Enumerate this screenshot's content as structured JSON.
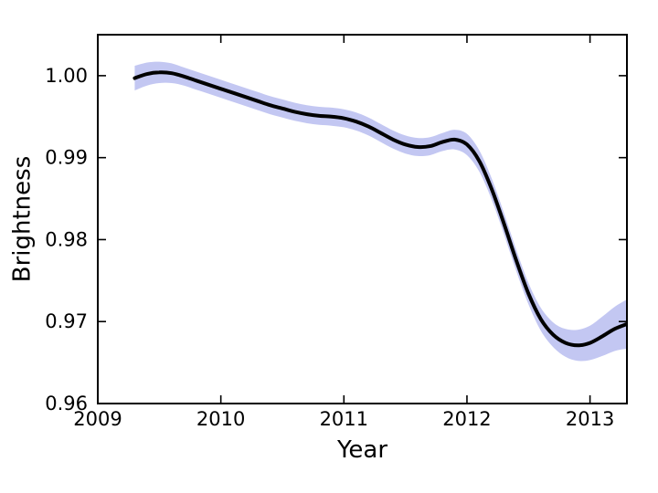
{
  "figure": {
    "background": "#ffffff",
    "frame_color": "#000000"
  },
  "chart_data": {
    "type": "line",
    "title": "",
    "xlabel": "Year",
    "ylabel": "Brightness",
    "xlim": [
      2009,
      2013.3
    ],
    "ylim": [
      0.96,
      1.005
    ],
    "xticks": [
      2009,
      2010,
      2011,
      2012,
      2013
    ],
    "xtick_labels": [
      "2009",
      "2010",
      "2011",
      "2012",
      "2013"
    ],
    "yticks": [
      0.96,
      0.97,
      0.98,
      0.99,
      1.0
    ],
    "ytick_labels": [
      "0.96",
      "0.97",
      "0.98",
      "0.99",
      "1.00"
    ],
    "grid": false,
    "legend": "none",
    "styles": {
      "line_color": "#000000",
      "line_width": 4,
      "band_color": "#c3c7f2",
      "tick_direction": "in"
    },
    "series": [
      {
        "name": "smoothed brightness with uncertainty band",
        "x": [
          2009.3,
          2009.4,
          2009.5,
          2009.6,
          2009.7,
          2009.8,
          2009.9,
          2010.0,
          2010.1,
          2010.2,
          2010.3,
          2010.4,
          2010.5,
          2010.6,
          2010.7,
          2010.8,
          2010.9,
          2011.0,
          2011.1,
          2011.2,
          2011.3,
          2011.4,
          2011.5,
          2011.6,
          2011.7,
          2011.8,
          2011.9,
          2012.0,
          2012.1,
          2012.2,
          2012.3,
          2012.4,
          2012.5,
          2012.6,
          2012.7,
          2012.8,
          2012.9,
          2013.0,
          2013.1,
          2013.2,
          2013.3
        ],
        "y": [
          0.9997,
          1.0002,
          1.0004,
          1.0003,
          0.9999,
          0.9994,
          0.9989,
          0.9984,
          0.9979,
          0.9974,
          0.9969,
          0.9964,
          0.996,
          0.9956,
          0.9953,
          0.9951,
          0.995,
          0.9948,
          0.9944,
          0.9938,
          0.993,
          0.9922,
          0.9916,
          0.9913,
          0.9914,
          0.9919,
          0.9922,
          0.9916,
          0.9896,
          0.9862,
          0.982,
          0.9775,
          0.9734,
          0.9703,
          0.9684,
          0.9674,
          0.9671,
          0.9674,
          0.9682,
          0.9691,
          0.9697
        ],
        "band_halfwidth": [
          0.0015,
          0.0014,
          0.0013,
          0.0012,
          0.0011,
          0.0011,
          0.0011,
          0.0011,
          0.0011,
          0.0011,
          0.0011,
          0.0011,
          0.0011,
          0.0011,
          0.0011,
          0.0011,
          0.0011,
          0.0011,
          0.0011,
          0.0011,
          0.0011,
          0.0011,
          0.0011,
          0.0011,
          0.0011,
          0.0011,
          0.0012,
          0.0013,
          0.0013,
          0.0013,
          0.0013,
          0.0013,
          0.0013,
          0.0014,
          0.0015,
          0.0017,
          0.0019,
          0.0021,
          0.0024,
          0.0027,
          0.003
        ]
      }
    ]
  }
}
